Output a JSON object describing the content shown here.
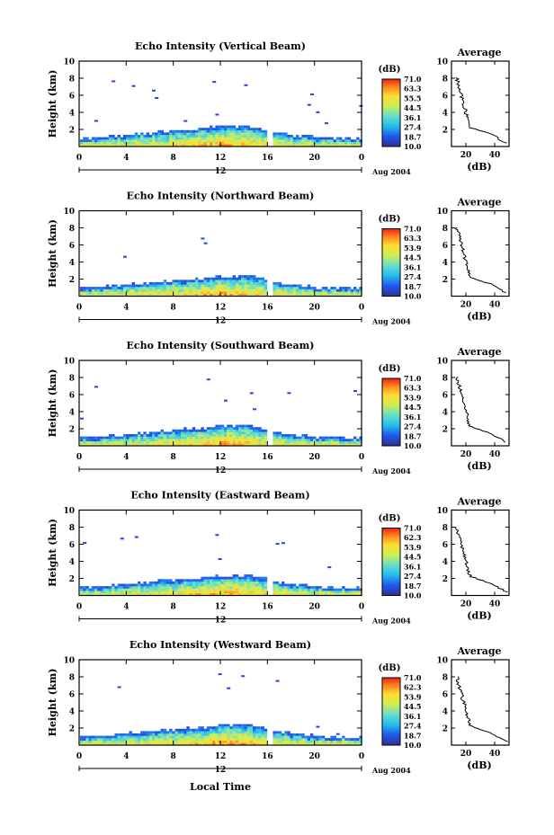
{
  "footer": {
    "xlabel": "Local Time"
  },
  "chart_data": [
    {
      "type": "heatmap",
      "title": "Echo Intensity (Vertical Beam)",
      "ylabel": "Height (km)",
      "xticks": [
        "0",
        "4",
        "8",
        "12",
        "16",
        "20",
        "0"
      ],
      "yticks": [
        "10",
        "8",
        "6",
        "4",
        "2"
      ],
      "day_label": "12",
      "date_label": "Aug 2004",
      "colorbar": {
        "unit": "(dB)",
        "labels": [
          "71.0",
          "63.3",
          "55.5",
          "44.5",
          "36.1",
          "27.4",
          "18.7",
          "10.0"
        ]
      },
      "profile": {
        "title": "Average",
        "xlabel": "(dB)",
        "xticks": [
          "20",
          "40"
        ],
        "yticks": [
          "10",
          "8",
          "6",
          "4",
          "2"
        ]
      }
    },
    {
      "type": "heatmap",
      "title": "Echo Intensity (Northward Beam)",
      "ylabel": "Height (km)",
      "xticks": [
        "0",
        "4",
        "8",
        "12",
        "16",
        "20",
        "0"
      ],
      "yticks": [
        "10",
        "8",
        "6",
        "4",
        "2"
      ],
      "day_label": "12",
      "date_label": "Aug 2004",
      "colorbar": {
        "unit": "(dB)",
        "labels": [
          "71.0",
          "63.3",
          "53.9",
          "44.5",
          "36.1",
          "27.4",
          "18.7",
          "10.0"
        ]
      },
      "profile": {
        "title": "Average",
        "xlabel": "(dB)",
        "xticks": [
          "20",
          "40"
        ],
        "yticks": [
          "10",
          "8",
          "6",
          "4",
          "2"
        ]
      }
    },
    {
      "type": "heatmap",
      "title": "Echo Intensity (Southward Beam)",
      "ylabel": "Height (km)",
      "xticks": [
        "0",
        "4",
        "8",
        "12",
        "16",
        "20",
        "0"
      ],
      "yticks": [
        "10",
        "8",
        "6",
        "4",
        "2"
      ],
      "day_label": "12",
      "date_label": "Aug 2004",
      "colorbar": {
        "unit": "(dB)",
        "labels": [
          "71.0",
          "63.3",
          "53.9",
          "44.5",
          "36.1",
          "27.4",
          "18.7",
          "10.0"
        ]
      },
      "profile": {
        "title": "Average",
        "xlabel": "(dB)",
        "xticks": [
          "20",
          "40"
        ],
        "yticks": [
          "10",
          "8",
          "6",
          "4",
          "2"
        ]
      }
    },
    {
      "type": "heatmap",
      "title": "Echo Intensity (Eastward Beam)",
      "ylabel": "Height (km)",
      "xticks": [
        "0",
        "4",
        "8",
        "12",
        "16",
        "20",
        "0"
      ],
      "yticks": [
        "10",
        "8",
        "6",
        "4",
        "2"
      ],
      "day_label": "12",
      "date_label": "Aug 2004",
      "colorbar": {
        "unit": "(dB)",
        "labels": [
          "71.0",
          "62.3",
          "53.9",
          "44.5",
          "36.1",
          "27.4",
          "18.7",
          "10.0"
        ]
      },
      "profile": {
        "title": "Average",
        "xlabel": "(dB)",
        "xticks": [
          "20",
          "40"
        ],
        "yticks": [
          "10",
          "8",
          "6",
          "4",
          "2"
        ]
      }
    },
    {
      "type": "heatmap",
      "title": "Echo Intensity (Westward Beam)",
      "ylabel": "Height (km)",
      "xticks": [
        "0",
        "4",
        "8",
        "12",
        "16",
        "20",
        "0"
      ],
      "yticks": [
        "10",
        "8",
        "6",
        "4",
        "2"
      ],
      "day_label": "12",
      "date_label": "Aug 2004",
      "colorbar": {
        "unit": "(dB)",
        "labels": [
          "71.0",
          "62.3",
          "53.9",
          "44.5",
          "36.1",
          "27.4",
          "18.7",
          "10.0"
        ]
      },
      "profile": {
        "title": "Average",
        "xlabel": "(dB)",
        "xticks": [
          "20",
          "40"
        ],
        "yticks": [
          "10",
          "8",
          "6",
          "4",
          "2"
        ]
      }
    }
  ]
}
